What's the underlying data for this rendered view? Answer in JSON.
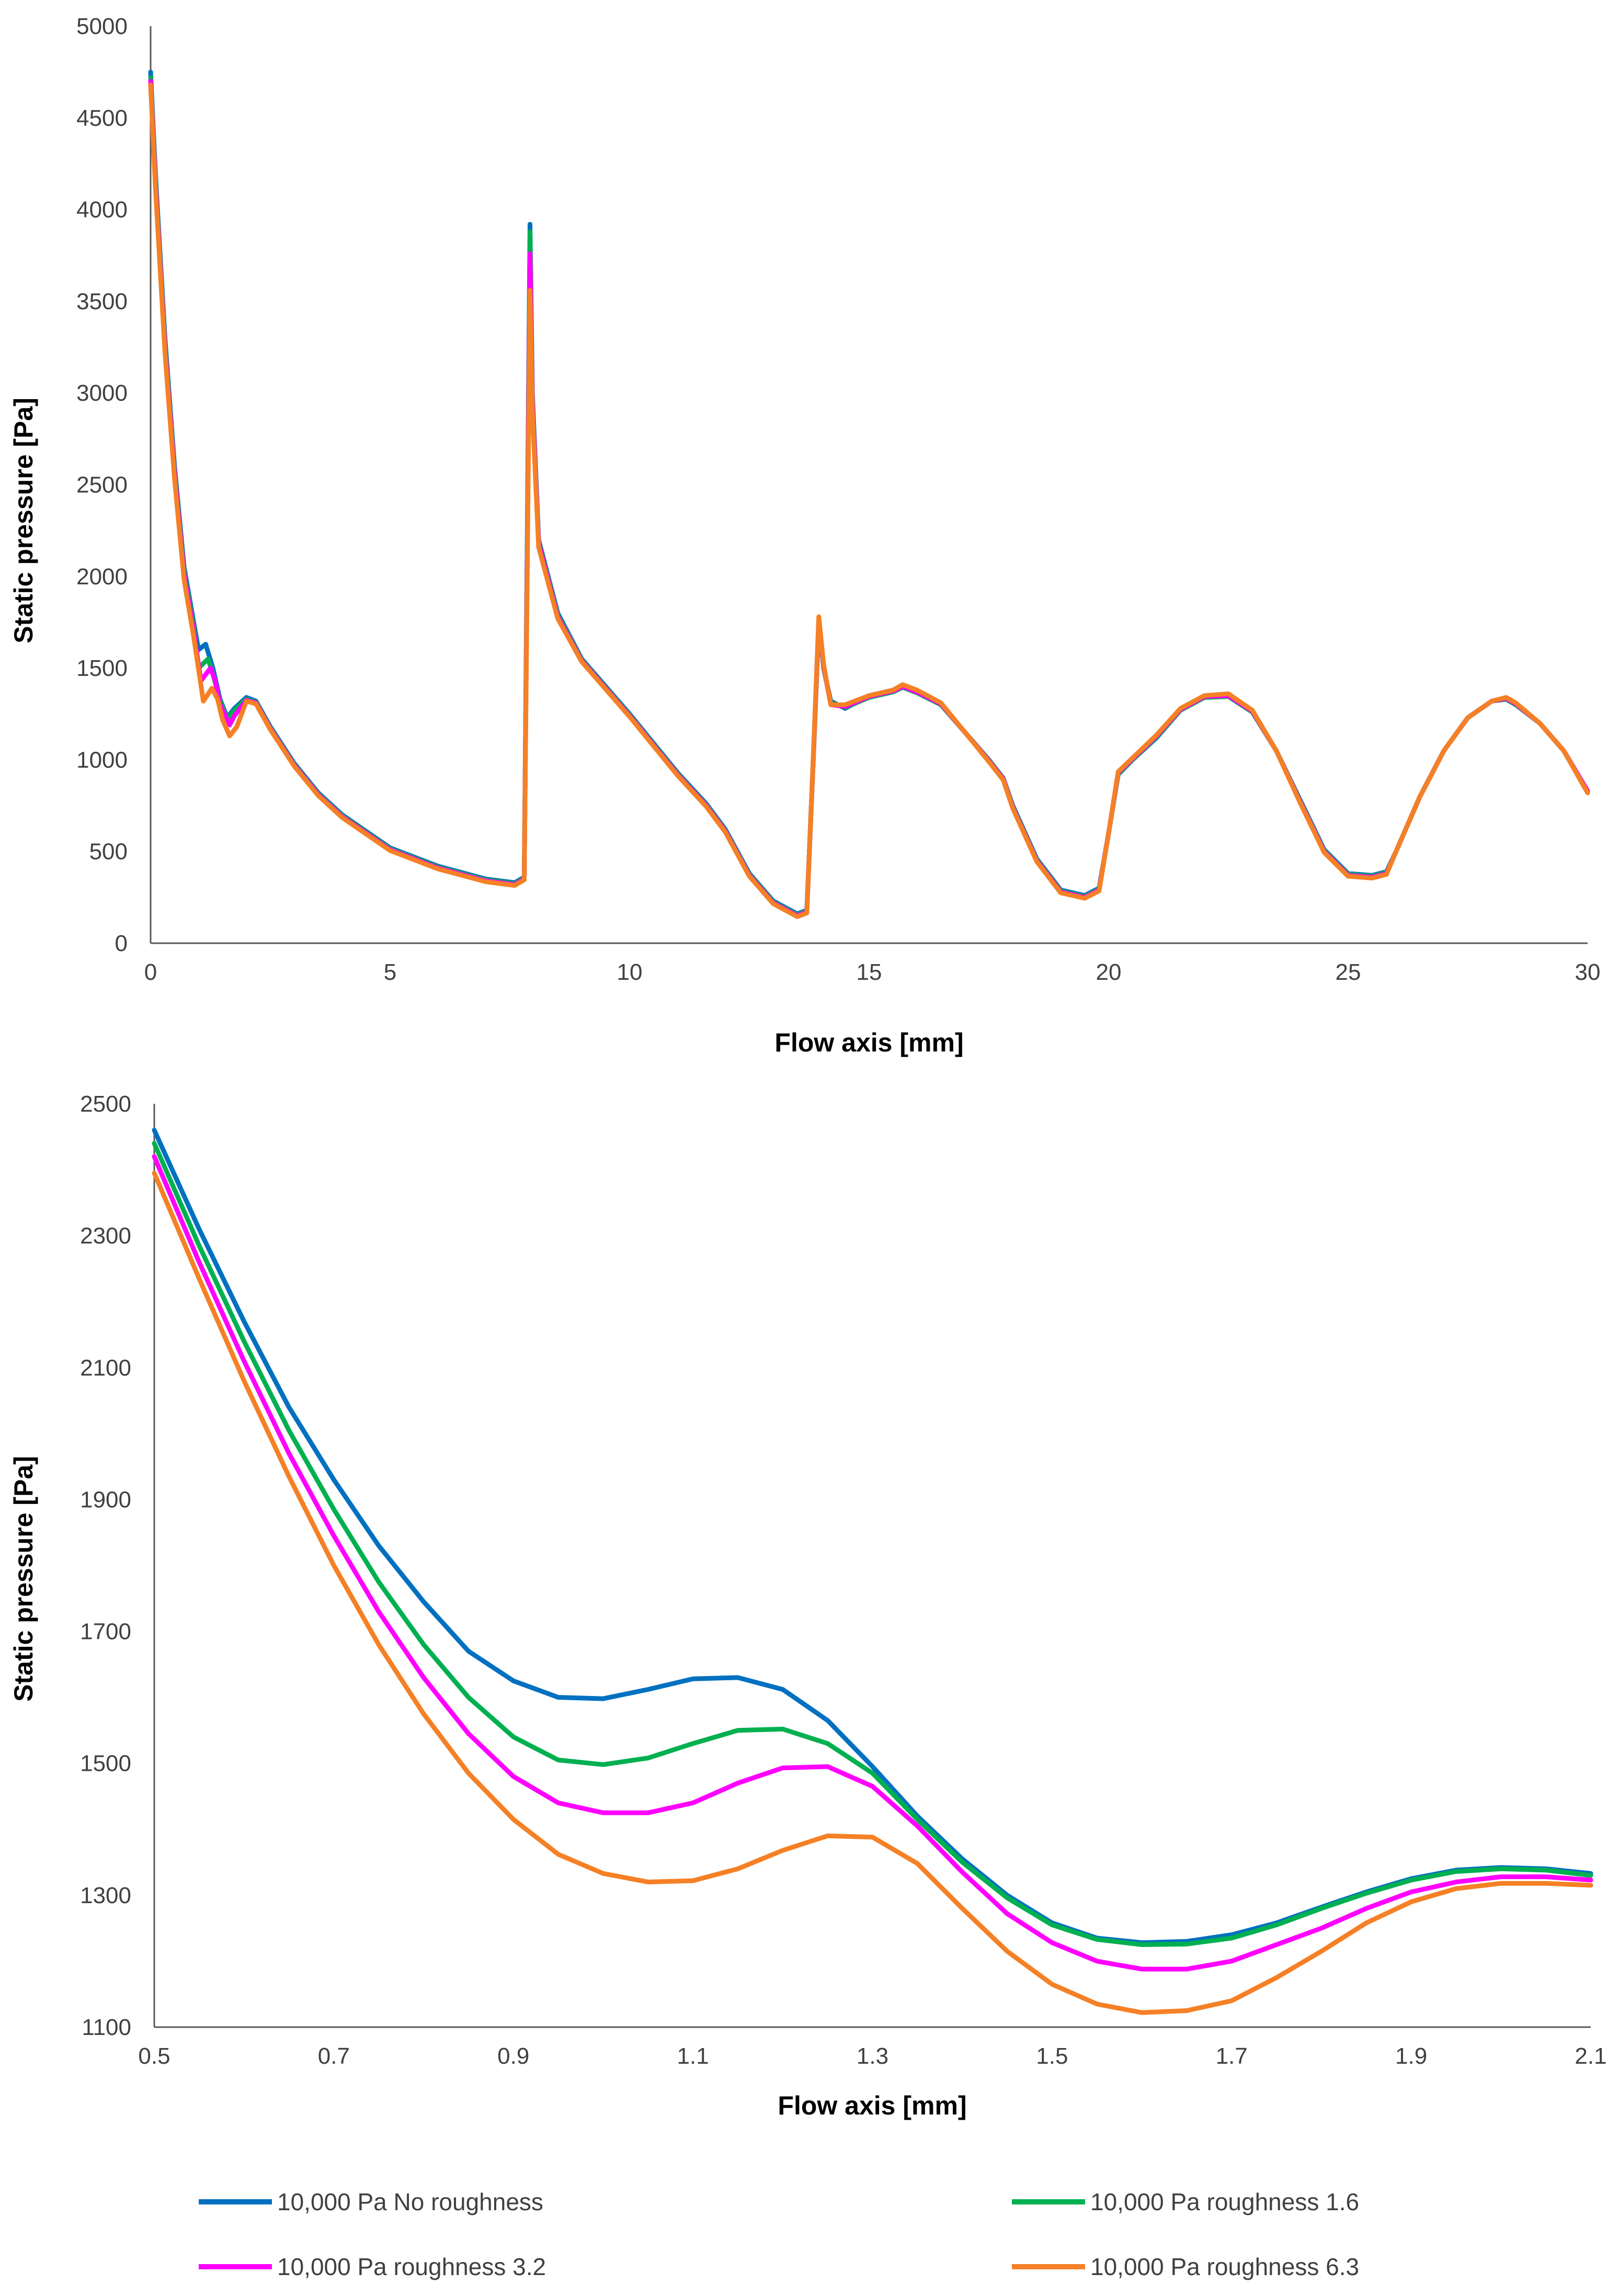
{
  "chart_data": [
    {
      "type": "line",
      "title": "",
      "xlabel": "Flow axis [mm]",
      "ylabel": "Static pressure [Pa]",
      "xlim": [
        0,
        30
      ],
      "ylim": [
        0,
        5000
      ],
      "x_ticks": [
        0,
        5,
        10,
        15,
        20,
        25,
        30
      ],
      "y_ticks": [
        0,
        500,
        1000,
        1500,
        2000,
        2500,
        3000,
        3500,
        4000,
        4500,
        5000
      ],
      "grid": false,
      "series": [
        {
          "name": "10,000 Pa No roughness",
          "color": "#0070C0",
          "x": [
            0,
            0.1,
            0.3,
            0.5,
            0.7,
            0.9,
            1.0,
            1.15,
            1.3,
            1.45,
            1.6,
            1.75,
            2.0,
            2.2,
            2.5,
            3.0,
            3.5,
            4.0,
            5.0,
            6.0,
            7.0,
            7.6,
            7.8,
            7.87,
            7.92,
            7.97,
            8.1,
            8.5,
            9.0,
            10.0,
            11.0,
            11.6,
            12.0,
            12.5,
            13.0,
            13.5,
            13.7,
            13.85,
            13.95,
            14.05,
            14.2,
            14.5,
            15.0,
            15.5,
            15.7,
            16.0,
            16.5,
            17.0,
            17.5,
            17.8,
            18.0,
            18.5,
            19.0,
            19.5,
            19.8,
            20.0,
            20.2,
            20.5,
            21.0,
            21.5,
            22.0,
            22.5,
            23.0,
            23.5,
            24.0,
            24.5,
            25.0,
            25.5,
            25.8,
            26.0,
            26.5,
            27.0,
            27.5,
            28.0,
            28.3,
            28.5,
            29.0,
            29.5,
            30.0
          ],
          "y": [
            4750,
            4200,
            3300,
            2600,
            2050,
            1750,
            1600,
            1630,
            1500,
            1330,
            1230,
            1280,
            1340,
            1320,
            1180,
            980,
            820,
            700,
            520,
            420,
            350,
            330,
            360,
            2400,
            3920,
            3000,
            2200,
            1800,
            1550,
            1250,
            930,
            760,
            620,
            380,
            230,
            160,
            180,
            1100,
            1750,
            1500,
            1320,
            1280,
            1350,
            1380,
            1400,
            1370,
            1300,
            1150,
            1000,
            900,
            750,
            460,
            290,
            260,
            300,
            600,
            920,
            1000,
            1120,
            1270,
            1340,
            1345,
            1260,
            1050,
            780,
            510,
            380,
            370,
            390,
            500,
            800,
            1050,
            1230,
            1320,
            1330,
            1300,
            1200,
            1050,
            830
          ]
        },
        {
          "name": "10,000 Pa roughness 1.6",
          "color": "#00B050",
          "x": [
            0,
            0.1,
            0.3,
            0.5,
            0.7,
            0.9,
            1.0,
            1.2,
            1.3,
            1.45,
            1.6,
            1.75,
            2.0,
            2.2,
            2.5,
            3.0,
            3.5,
            4.0,
            5.0,
            6.0,
            7.0,
            7.6,
            7.8,
            7.87,
            7.92,
            7.97,
            8.1,
            8.5,
            9.0,
            10.0,
            11.0,
            11.6,
            12.0,
            12.5,
            13.0,
            13.5,
            13.7,
            13.85,
            13.95,
            14.05,
            14.2,
            14.5,
            15.0,
            15.5,
            15.7,
            16.0,
            16.5,
            17.0,
            17.5,
            17.8,
            18.0,
            18.5,
            19.0,
            19.5,
            19.8,
            20.0,
            20.2,
            20.5,
            21.0,
            21.5,
            22.0,
            22.5,
            23.0,
            23.5,
            24.0,
            24.5,
            25.0,
            25.5,
            25.8,
            26.0,
            26.5,
            27.0,
            27.5,
            28.0,
            28.3,
            28.5,
            29.0,
            29.5,
            30.0
          ],
          "y": [
            4720,
            4180,
            3280,
            2580,
            2030,
            1720,
            1500,
            1550,
            1470,
            1320,
            1220,
            1270,
            1330,
            1315,
            1175,
            975,
            815,
            695,
            515,
            415,
            345,
            325,
            355,
            2380,
            3880,
            2980,
            2190,
            1790,
            1545,
            1245,
            925,
            755,
            615,
            375,
            225,
            155,
            175,
            1100,
            1760,
            1500,
            1310,
            1285,
            1340,
            1370,
            1395,
            1365,
            1300,
            1150,
            1000,
            900,
            745,
            455,
            285,
            255,
            295,
            600,
            925,
            1000,
            1125,
            1270,
            1340,
            1345,
            1260,
            1050,
            775,
            505,
            375,
            365,
            385,
            500,
            800,
            1050,
            1230,
            1320,
            1330,
            1300,
            1200,
            1050,
            830
          ]
        },
        {
          "name": "10,000 Pa roughness 3.2",
          "color": "#FF00FF",
          "x": [
            0,
            0.1,
            0.3,
            0.5,
            0.7,
            0.9,
            1.05,
            1.25,
            1.35,
            1.45,
            1.65,
            1.75,
            2.0,
            2.2,
            2.5,
            3.0,
            3.5,
            4.0,
            5.0,
            6.0,
            7.0,
            7.6,
            7.8,
            7.87,
            7.92,
            7.97,
            8.1,
            8.5,
            9.0,
            10.0,
            11.0,
            11.6,
            12.0,
            12.5,
            13.0,
            13.5,
            13.7,
            13.85,
            13.95,
            14.05,
            14.2,
            14.5,
            15.0,
            15.5,
            15.7,
            16.0,
            16.5,
            17.0,
            17.5,
            17.8,
            18.0,
            18.5,
            19.0,
            19.5,
            19.8,
            20.0,
            20.2,
            20.5,
            21.0,
            21.5,
            22.0,
            22.5,
            23.0,
            23.5,
            24.0,
            24.5,
            25.0,
            25.5,
            25.8,
            26.0,
            26.5,
            27.0,
            27.5,
            28.0,
            28.3,
            28.5,
            29.0,
            29.5,
            30.0
          ],
          "y": [
            4700,
            4150,
            3250,
            2560,
            2010,
            1700,
            1430,
            1500,
            1430,
            1300,
            1190,
            1240,
            1325,
            1310,
            1170,
            970,
            810,
            690,
            510,
            410,
            340,
            320,
            350,
            2300,
            3760,
            2950,
            2180,
            1780,
            1540,
            1240,
            920,
            750,
            610,
            370,
            220,
            150,
            170,
            1110,
            1770,
            1510,
            1300,
            1290,
            1345,
            1375,
            1400,
            1370,
            1305,
            1150,
            995,
            895,
            740,
            450,
            280,
            250,
            290,
            600,
            930,
            1005,
            1130,
            1275,
            1345,
            1350,
            1265,
            1050,
            770,
            500,
            370,
            360,
            380,
            500,
            800,
            1050,
            1230,
            1320,
            1335,
            1305,
            1200,
            1050,
            830
          ]
        },
        {
          "name": "10,000 Pa roughness 6.3",
          "color": "#F58025",
          "x": [
            0,
            0.1,
            0.3,
            0.5,
            0.7,
            0.9,
            1.1,
            1.28,
            1.4,
            1.5,
            1.65,
            1.8,
            2.0,
            2.2,
            2.5,
            3.0,
            3.5,
            4.0,
            5.0,
            6.0,
            7.0,
            7.6,
            7.8,
            7.87,
            7.92,
            7.97,
            8.1,
            8.5,
            9.0,
            10.0,
            11.0,
            11.6,
            12.0,
            12.5,
            13.0,
            13.5,
            13.7,
            13.85,
            13.95,
            14.05,
            14.2,
            14.5,
            15.0,
            15.5,
            15.7,
            16.0,
            16.5,
            17.0,
            17.5,
            17.8,
            18.0,
            18.5,
            19.0,
            19.5,
            19.8,
            20.0,
            20.2,
            20.5,
            21.0,
            21.5,
            22.0,
            22.5,
            23.0,
            23.5,
            24.0,
            24.5,
            25.0,
            25.5,
            25.8,
            26.0,
            26.5,
            27.0,
            27.5,
            28.0,
            28.3,
            28.5,
            29.0,
            29.5,
            30.0
          ],
          "y": [
            4680,
            4120,
            3220,
            2530,
            1980,
            1670,
            1320,
            1390,
            1330,
            1220,
            1130,
            1180,
            1320,
            1305,
            1165,
            965,
            805,
            685,
            505,
            405,
            335,
            315,
            345,
            2200,
            3560,
            2900,
            2160,
            1770,
            1535,
            1235,
            915,
            745,
            605,
            365,
            215,
            145,
            165,
            1120,
            1780,
            1520,
            1300,
            1300,
            1350,
            1380,
            1410,
            1380,
            1310,
            1150,
            990,
            890,
            735,
            445,
            275,
            245,
            285,
            600,
            935,
            1010,
            1135,
            1280,
            1350,
            1360,
            1270,
            1050,
            765,
            495,
            365,
            355,
            375,
            500,
            800,
            1050,
            1230,
            1320,
            1340,
            1310,
            1200,
            1050,
            820
          ]
        }
      ]
    },
    {
      "type": "line",
      "title": "",
      "xlabel": "Flow axis [mm]",
      "ylabel": "Static pressure [Pa]",
      "xlim": [
        0.5,
        2.1
      ],
      "ylim": [
        1100,
        2500
      ],
      "x_ticks": [
        "0.5",
        "0.7",
        "0.9",
        "1.1",
        "1.3",
        "1.5",
        "1.7",
        "1.9",
        "2.1"
      ],
      "y_ticks": [
        1100,
        1300,
        1500,
        1700,
        1900,
        2100,
        2300,
        2500
      ],
      "grid": false,
      "series": [
        {
          "name": "10,000 Pa No roughness",
          "color": "#0070C0",
          "x": [
            0.5,
            0.55,
            0.6,
            0.65,
            0.7,
            0.75,
            0.8,
            0.85,
            0.9,
            0.95,
            1.0,
            1.05,
            1.1,
            1.15,
            1.2,
            1.25,
            1.3,
            1.35,
            1.4,
            1.45,
            1.5,
            1.55,
            1.6,
            1.65,
            1.7,
            1.75,
            1.8,
            1.85,
            1.9,
            1.95,
            2.0,
            2.05,
            2.1
          ],
          "y": [
            2460,
            2310,
            2170,
            2040,
            1930,
            1830,
            1745,
            1670,
            1625,
            1600,
            1598,
            1612,
            1628,
            1630,
            1612,
            1565,
            1495,
            1420,
            1355,
            1300,
            1258,
            1235,
            1228,
            1230,
            1240,
            1258,
            1282,
            1305,
            1325,
            1338,
            1342,
            1340,
            1333
          ]
        },
        {
          "name": "10,000 Pa roughness 1.6",
          "color": "#00B050",
          "x": [
            0.5,
            0.55,
            0.6,
            0.65,
            0.7,
            0.75,
            0.8,
            0.85,
            0.9,
            0.95,
            1.0,
            1.05,
            1.1,
            1.15,
            1.2,
            1.25,
            1.3,
            1.35,
            1.4,
            1.45,
            1.5,
            1.55,
            1.6,
            1.65,
            1.7,
            1.75,
            1.8,
            1.85,
            1.9,
            1.95,
            2.0,
            2.05,
            2.1
          ],
          "y": [
            2440,
            2285,
            2140,
            2005,
            1885,
            1775,
            1680,
            1600,
            1540,
            1505,
            1498,
            1508,
            1530,
            1550,
            1552,
            1530,
            1485,
            1415,
            1350,
            1296,
            1255,
            1233,
            1225,
            1226,
            1235,
            1255,
            1280,
            1303,
            1323,
            1336,
            1340,
            1338,
            1330
          ]
        },
        {
          "name": "10,000 Pa roughness 3.2",
          "color": "#FF00FF",
          "x": [
            0.5,
            0.55,
            0.6,
            0.65,
            0.7,
            0.75,
            0.8,
            0.85,
            0.9,
            0.95,
            1.0,
            1.05,
            1.1,
            1.15,
            1.2,
            1.25,
            1.3,
            1.35,
            1.4,
            1.45,
            1.5,
            1.55,
            1.6,
            1.65,
            1.7,
            1.75,
            1.8,
            1.85,
            1.9,
            1.95,
            2.0,
            2.05,
            2.1
          ],
          "y": [
            2420,
            2260,
            2110,
            1970,
            1845,
            1730,
            1630,
            1545,
            1480,
            1440,
            1425,
            1425,
            1440,
            1470,
            1493,
            1495,
            1465,
            1405,
            1335,
            1272,
            1228,
            1200,
            1188,
            1188,
            1200,
            1225,
            1250,
            1280,
            1305,
            1320,
            1328,
            1328,
            1323
          ]
        },
        {
          "name": "10,000 Pa roughness 6.3",
          "color": "#F58025",
          "x": [
            0.5,
            0.55,
            0.6,
            0.65,
            0.7,
            0.75,
            0.8,
            0.85,
            0.9,
            0.95,
            1.0,
            1.05,
            1.1,
            1.15,
            1.2,
            1.25,
            1.3,
            1.35,
            1.4,
            1.45,
            1.5,
            1.55,
            1.6,
            1.65,
            1.7,
            1.75,
            1.8,
            1.85,
            1.9,
            1.95,
            2.0,
            2.05,
            2.1
          ],
          "y": [
            2395,
            2235,
            2080,
            1935,
            1800,
            1680,
            1575,
            1485,
            1415,
            1362,
            1333,
            1320,
            1322,
            1340,
            1368,
            1390,
            1388,
            1348,
            1280,
            1215,
            1165,
            1135,
            1122,
            1125,
            1140,
            1175,
            1215,
            1258,
            1290,
            1310,
            1318,
            1318,
            1315
          ]
        }
      ]
    }
  ],
  "legend": {
    "position": "bottom",
    "items": [
      "10,000 Pa No roughness",
      "10,000 Pa roughness 1.6",
      "10,000 Pa roughness 3.2",
      "10,000 Pa roughness 6.3"
    ]
  }
}
